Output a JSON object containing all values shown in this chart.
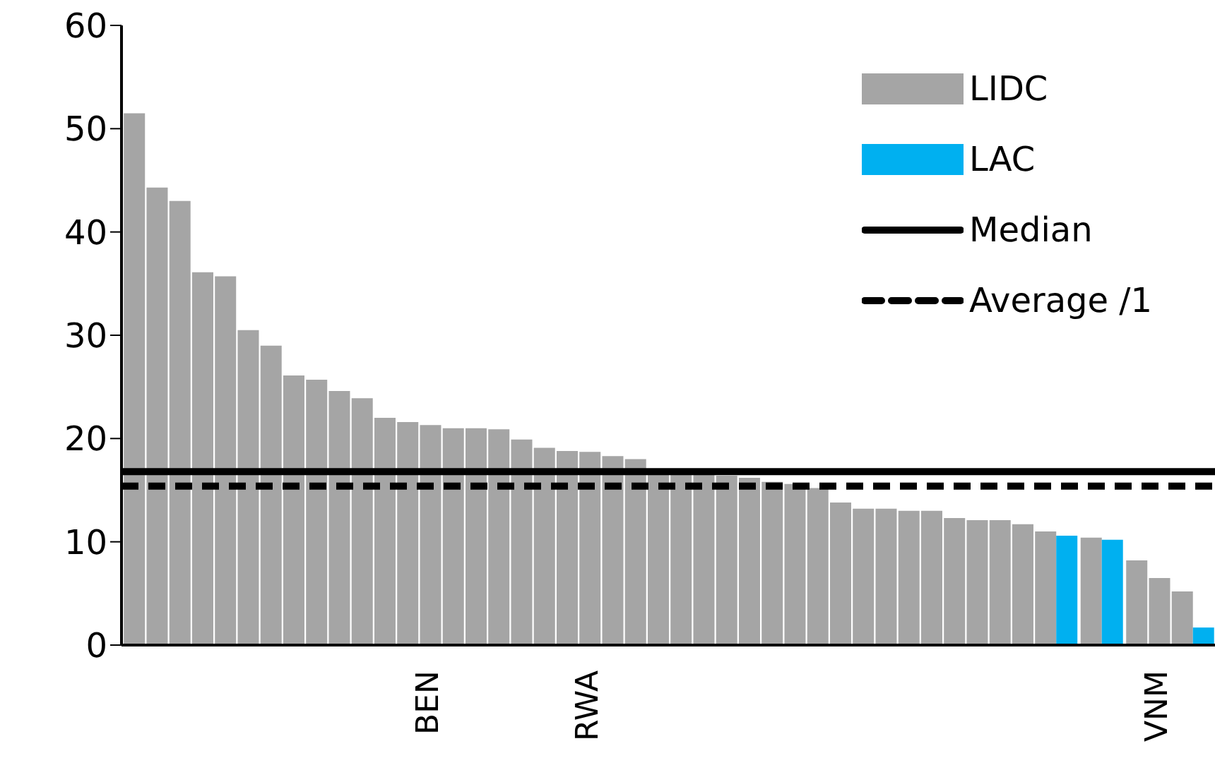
{
  "chart_data": {
    "type": "bar",
    "categories": [
      null,
      null,
      null,
      null,
      null,
      null,
      null,
      null,
      null,
      null,
      null,
      null,
      null,
      "BEN",
      null,
      null,
      null,
      null,
      null,
      null,
      "RWA",
      null,
      null,
      null,
      null,
      null,
      null,
      null,
      null,
      null,
      null,
      null,
      null,
      null,
      null,
      null,
      null,
      null,
      null,
      null,
      null,
      null,
      null,
      null,
      null,
      "VNM",
      null,
      null
    ],
    "series": [
      {
        "name": "LIDC",
        "color": "#a5a5a5",
        "values": [
          51.5,
          44.3,
          43.0,
          36.1,
          35.7,
          30.5,
          29.0,
          26.1,
          25.7,
          24.6,
          23.9,
          22.0,
          21.6,
          21.3,
          21.0,
          21.0,
          20.9,
          19.9,
          19.1,
          18.8,
          18.7,
          18.3,
          18.0,
          16.8,
          16.6,
          16.5,
          16.4,
          16.2,
          15.8,
          15.6,
          15.2,
          13.8,
          13.2,
          13.2,
          13.0,
          13.0,
          12.3,
          12.1,
          12.1,
          11.7,
          11.0,
          null,
          10.4,
          null,
          8.2,
          6.5,
          5.2,
          null
        ]
      },
      {
        "name": "LAC",
        "color": "#00b0f0",
        "values": [
          null,
          null,
          null,
          null,
          null,
          null,
          null,
          null,
          null,
          null,
          null,
          null,
          null,
          null,
          null,
          null,
          null,
          null,
          null,
          null,
          null,
          null,
          null,
          null,
          null,
          null,
          null,
          null,
          null,
          null,
          null,
          null,
          null,
          null,
          null,
          null,
          null,
          null,
          null,
          null,
          null,
          10.6,
          null,
          10.2,
          null,
          null,
          null,
          1.7
        ]
      }
    ],
    "ref_lines": [
      {
        "axis": "y",
        "value": 16.8,
        "label": "Median",
        "color": "#000000",
        "line_style": "solid"
      },
      {
        "axis": "y",
        "value": 15.4,
        "label": "Average /1",
        "color": "#000000",
        "line_style": "dashed"
      }
    ],
    "ylim": [
      0,
      60
    ],
    "yticks": [
      0,
      10,
      20,
      30,
      40,
      50,
      60
    ],
    "grid": false,
    "legend": "top right"
  }
}
